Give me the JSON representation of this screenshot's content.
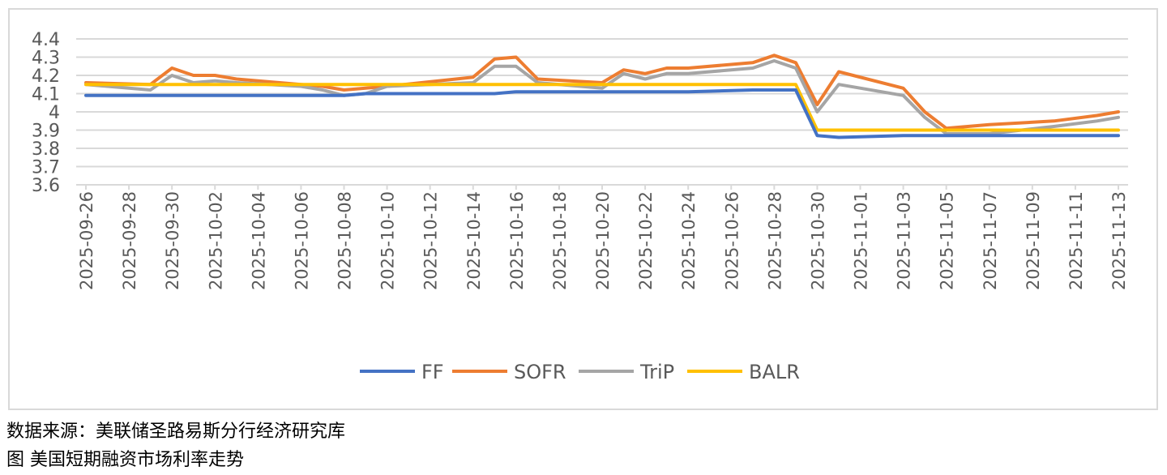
{
  "chart_data": {
    "type": "line",
    "title": "",
    "xlabel": "",
    "ylabel": "",
    "ylim": [
      3.6,
      4.4
    ],
    "yticks": [
      "4.4",
      "4.3",
      "4.2",
      "4.1",
      "4",
      "3.9",
      "3.8",
      "3.7",
      "3.6"
    ],
    "grid": "horizontal",
    "legend_position": "bottom",
    "x": [
      "2025-09-26",
      "2025-09-29",
      "2025-09-30",
      "2025-10-01",
      "2025-10-02",
      "2025-10-03",
      "2025-10-06",
      "2025-10-07",
      "2025-10-08",
      "2025-10-09",
      "2025-10-10",
      "2025-10-14",
      "2025-10-15",
      "2025-10-16",
      "2025-10-17",
      "2025-10-20",
      "2025-10-21",
      "2025-10-22",
      "2025-10-23",
      "2025-10-24",
      "2025-10-27",
      "2025-10-28",
      "2025-10-29",
      "2025-10-30",
      "2025-10-31",
      "2025-11-03",
      "2025-11-04",
      "2025-11-05",
      "2025-11-06",
      "2025-11-07",
      "2025-11-10",
      "2025-11-12",
      "2025-11-13"
    ],
    "xtick_labels": [
      "2025-09-26",
      "2025-09-28",
      "2025-09-30",
      "2025-10-02",
      "2025-10-04",
      "2025-10-06",
      "2025-10-08",
      "2025-10-10",
      "2025-10-12",
      "2025-10-14",
      "2025-10-16",
      "2025-10-18",
      "2025-10-20",
      "2025-10-22",
      "2025-10-24",
      "2025-10-26",
      "2025-10-28",
      "2025-10-30",
      "2025-11-01",
      "2025-11-03",
      "2025-11-05",
      "2025-11-07",
      "2025-11-09",
      "2025-11-11",
      "2025-11-13"
    ],
    "series": [
      {
        "name": "FF",
        "color": "#4472C4",
        "values": [
          4.09,
          4.09,
          4.09,
          4.09,
          4.09,
          4.09,
          4.09,
          4.09,
          4.09,
          4.1,
          4.1,
          4.1,
          4.1,
          4.11,
          4.11,
          4.11,
          4.11,
          4.11,
          4.11,
          4.11,
          4.12,
          4.12,
          4.12,
          3.87,
          3.86,
          3.87,
          3.87,
          3.87,
          3.87,
          3.87,
          3.87,
          3.87,
          3.87
        ]
      },
      {
        "name": "SOFR",
        "color": "#ED7D31",
        "values": [
          4.16,
          4.15,
          4.24,
          4.2,
          4.2,
          4.18,
          4.15,
          4.14,
          4.12,
          4.13,
          4.14,
          4.19,
          4.29,
          4.3,
          4.18,
          4.16,
          4.23,
          4.21,
          4.24,
          4.24,
          4.27,
          4.31,
          4.27,
          4.04,
          4.22,
          4.13,
          4.0,
          3.91,
          3.92,
          3.93,
          3.95,
          3.98,
          4.0
        ]
      },
      {
        "name": "TriP",
        "color": "#A5A5A5",
        "values": [
          4.15,
          4.12,
          4.2,
          4.16,
          4.17,
          4.16,
          4.14,
          4.12,
          4.09,
          4.1,
          4.14,
          4.16,
          4.25,
          4.25,
          4.16,
          4.13,
          4.21,
          4.18,
          4.21,
          4.21,
          4.24,
          4.28,
          4.24,
          4.0,
          4.15,
          4.09,
          3.97,
          3.88,
          3.88,
          3.88,
          3.92,
          3.95,
          3.97
        ]
      },
      {
        "name": "BALR",
        "color": "#FFC000",
        "values": [
          4.15,
          4.15,
          4.15,
          4.15,
          4.15,
          4.15,
          4.15,
          4.15,
          4.15,
          4.15,
          4.15,
          4.15,
          4.15,
          4.15,
          4.15,
          4.15,
          4.15,
          4.15,
          4.15,
          4.15,
          4.15,
          4.15,
          4.15,
          3.9,
          3.9,
          3.9,
          3.9,
          3.9,
          3.9,
          3.9,
          3.9,
          3.9,
          3.9
        ]
      }
    ]
  },
  "captions": {
    "source": "数据来源：美联储圣路易斯分行经济研究库",
    "title": "图 美国短期融资市场利率走势"
  }
}
